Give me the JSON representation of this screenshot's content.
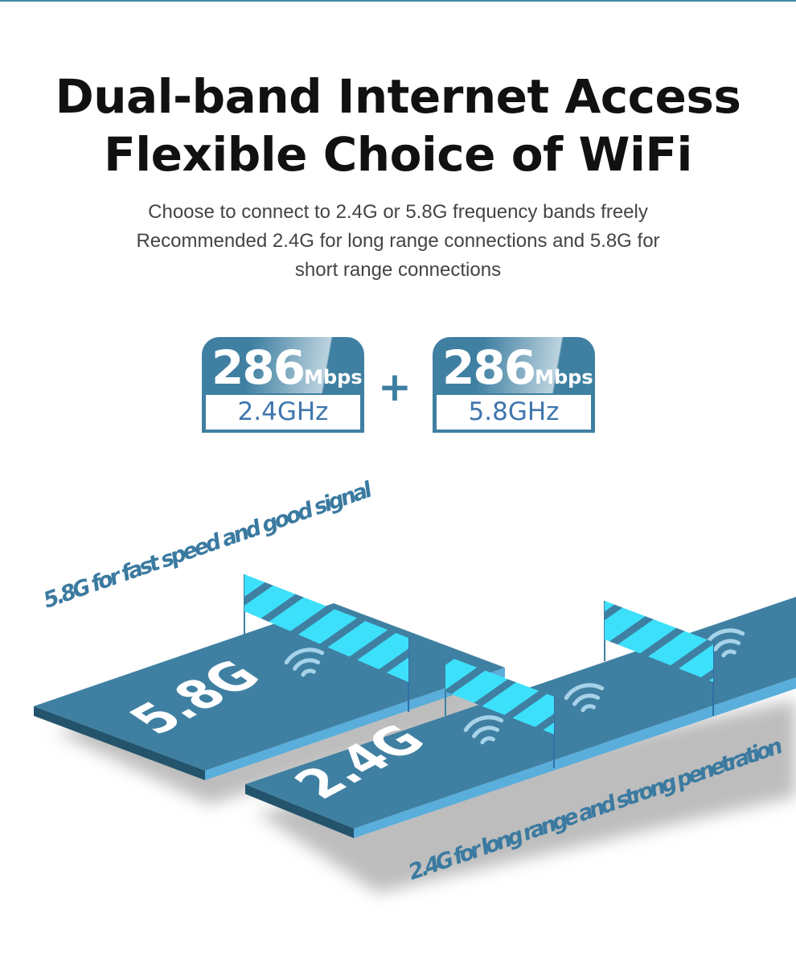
{
  "title_line1": "Dual-band Internet Access",
  "title_line2": "Flexible Choice of WiFi",
  "subtitle_lines": [
    "Choose to connect to 2.4G or 5.8G frequency bands freely",
    "Recommended 2.4G for long range connections and 5.8G for",
    "short range connections"
  ],
  "badges": [
    {
      "speed": "286",
      "unit": "Mbps",
      "band": "2.4GHz"
    },
    {
      "speed": "286",
      "unit": "Mbps",
      "band": "5.8GHz"
    }
  ],
  "plus": "+",
  "illustration": {
    "label_58": "5.8G for fast speed and good signal",
    "label_24": "2.4G for long range and strong penetration",
    "slab_58": "5.8G",
    "slab_24": "2.4G",
    "icons": [
      "wifi-signal-icon",
      "flag-icon"
    ]
  },
  "colors": {
    "primary": "#3f80a2",
    "flag": "#3de0fb",
    "side": "#5aaedb",
    "label": "#3b7aa0"
  }
}
